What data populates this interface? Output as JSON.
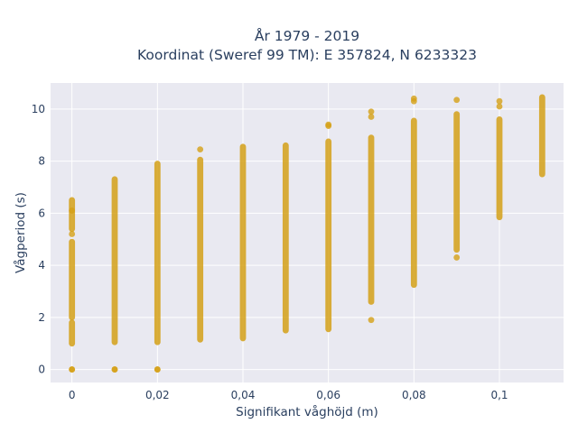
{
  "chart_data": {
    "type": "scatter",
    "title_lines": [
      "År 1979 - 2019",
      "Koordinat (Sweref 99 TM): E 357824, N 6233323"
    ],
    "xlabel": "Signifikant våghöjd (m)",
    "ylabel": "Vågperiod (s)",
    "xlim": [
      -0.005,
      0.115
    ],
    "ylim": [
      -0.5,
      11
    ],
    "x_ticks": [
      0,
      0.02,
      0.04,
      0.06,
      0.08,
      0.1
    ],
    "x_tick_labels": [
      "0",
      "0,02",
      "0,04",
      "0,06",
      "0,08",
      "0,1"
    ],
    "y_ticks": [
      0,
      2,
      4,
      6,
      8,
      10
    ],
    "y_tick_labels": [
      "0",
      "2",
      "4",
      "6",
      "8",
      "10"
    ],
    "grid": true,
    "colors": {
      "marker": "#d4a017",
      "plot_bg": "#e9e9f1",
      "grid": "#ffffff",
      "text": "#2a3f5f"
    },
    "series": [
      {
        "groups": [
          {
            "x": 0.0,
            "ranges": [
              [
                1.0,
                1.8
              ],
              [
                2.0,
                4.9
              ],
              [
                5.4,
                6.5
              ]
            ],
            "points": [
              0,
              0,
              6.1,
              5.2
            ]
          },
          {
            "x": 0.01,
            "ranges": [
              [
                1.05,
                7.3
              ]
            ],
            "points": [
              0,
              0
            ]
          },
          {
            "x": 0.02,
            "ranges": [
              [
                1.05,
                7.9
              ]
            ],
            "points": [
              0,
              0
            ]
          },
          {
            "x": 0.03,
            "ranges": [
              [
                1.15,
                8.05
              ]
            ],
            "points": [
              8.45
            ]
          },
          {
            "x": 0.04,
            "ranges": [
              [
                1.2,
                8.55
              ]
            ],
            "points": []
          },
          {
            "x": 0.05,
            "ranges": [
              [
                1.5,
                8.6
              ]
            ],
            "points": []
          },
          {
            "x": 0.06,
            "ranges": [
              [
                1.55,
                8.75
              ]
            ],
            "points": [
              9.35,
              9.4
            ]
          },
          {
            "x": 0.07,
            "ranges": [
              [
                2.6,
                8.9
              ]
            ],
            "points": [
              1.9,
              9.7,
              9.9
            ]
          },
          {
            "x": 0.08,
            "ranges": [
              [
                3.25,
                9.55
              ]
            ],
            "points": [
              10.3,
              10.4
            ]
          },
          {
            "x": 0.09,
            "ranges": [
              [
                4.6,
                9.8
              ]
            ],
            "points": [
              4.3,
              10.35
            ]
          },
          {
            "x": 0.1,
            "ranges": [
              [
                5.85,
                9.6
              ]
            ],
            "points": [
              10.1,
              10.3
            ]
          },
          {
            "x": 0.11,
            "ranges": [
              [
                7.5,
                10.45
              ]
            ],
            "points": []
          }
        ]
      }
    ]
  }
}
